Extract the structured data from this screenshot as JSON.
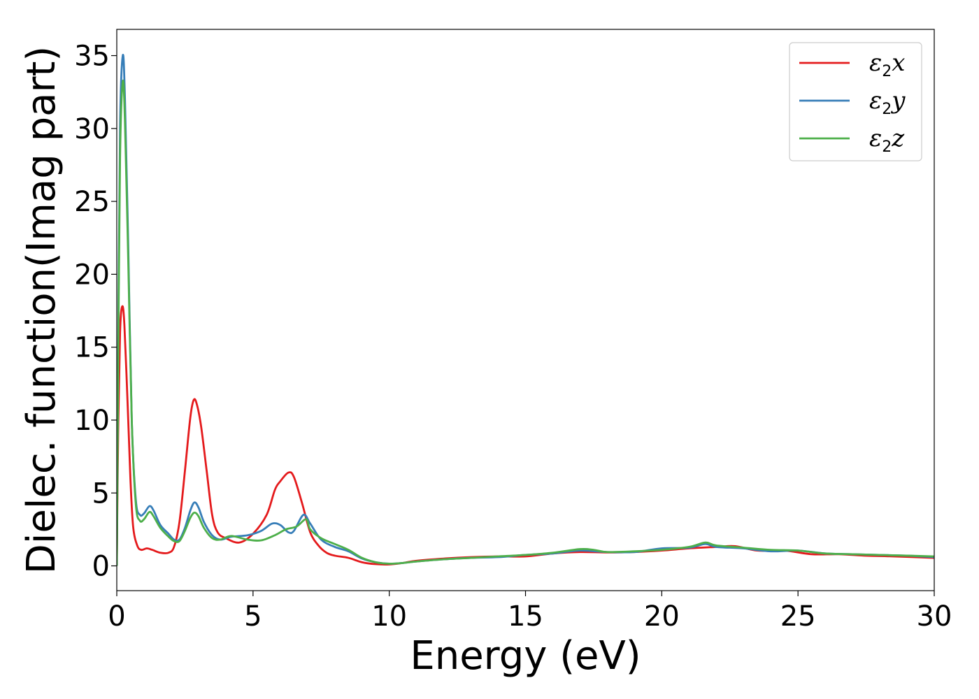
{
  "chart_data": {
    "type": "line",
    "xlabel": "Energy (eV)",
    "ylabel": "Dielec. function(Imag part)",
    "xlim": [
      0,
      30
    ],
    "ylim": [
      -1.7,
      36.8
    ],
    "xticks": [
      0,
      5,
      10,
      15,
      20,
      25,
      30
    ],
    "yticks": [
      0,
      5,
      10,
      15,
      20,
      25,
      30,
      35
    ],
    "grid": false,
    "legend_position": "top-right",
    "series": [
      {
        "name": "ε2x",
        "name_base": "ε",
        "name_sub": "2",
        "name_tail": "x",
        "color": "#e41a1c",
        "points": [
          [
            0,
            0
          ],
          [
            0.05,
            9
          ],
          [
            0.12,
            16
          ],
          [
            0.2,
            17.8
          ],
          [
            0.28,
            16.5
          ],
          [
            0.4,
            11
          ],
          [
            0.5,
            6
          ],
          [
            0.6,
            2.7
          ],
          [
            0.75,
            1.4
          ],
          [
            0.9,
            1.1
          ],
          [
            1.1,
            1.2
          ],
          [
            1.3,
            1.1
          ],
          [
            1.6,
            0.9
          ],
          [
            1.9,
            0.9
          ],
          [
            2.1,
            1.3
          ],
          [
            2.3,
            3
          ],
          [
            2.5,
            6.5
          ],
          [
            2.7,
            10.2
          ],
          [
            2.83,
            11.4
          ],
          [
            2.95,
            11
          ],
          [
            3.1,
            9.5
          ],
          [
            3.3,
            6.5
          ],
          [
            3.5,
            3.5
          ],
          [
            3.7,
            2.3
          ],
          [
            4,
            1.9
          ],
          [
            4.5,
            1.6
          ],
          [
            5,
            2.2
          ],
          [
            5.5,
            3.5
          ],
          [
            5.8,
            5.2
          ],
          [
            6,
            5.8
          ],
          [
            6.3,
            6.4
          ],
          [
            6.5,
            6.1
          ],
          [
            6.8,
            4.3
          ],
          [
            7.1,
            2.3
          ],
          [
            7.4,
            1.4
          ],
          [
            7.7,
            0.9
          ],
          [
            8,
            0.7
          ],
          [
            8.5,
            0.55
          ],
          [
            9,
            0.25
          ],
          [
            9.5,
            0.12
          ],
          [
            10,
            0.1
          ],
          [
            10.5,
            0.2
          ],
          [
            11,
            0.35
          ],
          [
            12,
            0.5
          ],
          [
            13,
            0.6
          ],
          [
            14,
            0.65
          ],
          [
            15,
            0.65
          ],
          [
            16,
            0.85
          ],
          [
            17,
            0.95
          ],
          [
            18,
            0.92
          ],
          [
            19,
            0.95
          ],
          [
            20,
            1.05
          ],
          [
            21,
            1.2
          ],
          [
            22,
            1.3
          ],
          [
            22.7,
            1.35
          ],
          [
            23.5,
            1.05
          ],
          [
            24.5,
            1.05
          ],
          [
            25.5,
            0.8
          ],
          [
            26.5,
            0.8
          ],
          [
            27.5,
            0.7
          ],
          [
            28.5,
            0.65
          ],
          [
            30,
            0.55
          ]
        ]
      },
      {
        "name": "ε2y",
        "name_base": "ε",
        "name_sub": "2",
        "name_tail": "y",
        "color": "#377eb8",
        "points": [
          [
            0,
            0
          ],
          [
            0.05,
            14
          ],
          [
            0.12,
            30
          ],
          [
            0.22,
            35
          ],
          [
            0.3,
            32
          ],
          [
            0.42,
            22
          ],
          [
            0.55,
            10
          ],
          [
            0.7,
            4.5
          ],
          [
            0.85,
            3.5
          ],
          [
            1,
            3.6
          ],
          [
            1.2,
            4.1
          ],
          [
            1.35,
            3.8
          ],
          [
            1.6,
            2.8
          ],
          [
            1.9,
            2.2
          ],
          [
            2.1,
            1.8
          ],
          [
            2.3,
            1.8
          ],
          [
            2.5,
            2.6
          ],
          [
            2.7,
            3.8
          ],
          [
            2.85,
            4.35
          ],
          [
            3,
            4
          ],
          [
            3.2,
            3
          ],
          [
            3.5,
            2.1
          ],
          [
            3.8,
            1.8
          ],
          [
            4.2,
            2
          ],
          [
            4.8,
            2.1
          ],
          [
            5.3,
            2.4
          ],
          [
            5.7,
            2.9
          ],
          [
            6,
            2.8
          ],
          [
            6.3,
            2.3
          ],
          [
            6.5,
            2.4
          ],
          [
            6.85,
            3.5
          ],
          [
            7.1,
            2.9
          ],
          [
            7.5,
            1.8
          ],
          [
            8,
            1.3
          ],
          [
            8.5,
            1
          ],
          [
            9,
            0.5
          ],
          [
            9.5,
            0.25
          ],
          [
            10,
            0.15
          ],
          [
            10.5,
            0.2
          ],
          [
            11,
            0.3
          ],
          [
            12,
            0.45
          ],
          [
            13,
            0.55
          ],
          [
            14,
            0.6
          ],
          [
            15,
            0.75
          ],
          [
            16,
            0.85
          ],
          [
            17,
            1.05
          ],
          [
            18,
            0.95
          ],
          [
            19,
            0.95
          ],
          [
            20,
            1.2
          ],
          [
            21,
            1.25
          ],
          [
            21.6,
            1.5
          ],
          [
            22,
            1.3
          ],
          [
            23,
            1.2
          ],
          [
            24,
            1
          ],
          [
            25,
            1.05
          ],
          [
            26,
            0.85
          ],
          [
            27,
            0.8
          ],
          [
            28,
            0.75
          ],
          [
            29,
            0.7
          ],
          [
            30,
            0.6
          ]
        ]
      },
      {
        "name": "ε2z",
        "name_base": "ε",
        "name_sub": "2",
        "name_tail": "z",
        "color": "#4daf4a",
        "points": [
          [
            0,
            0
          ],
          [
            0.05,
            13
          ],
          [
            0.12,
            28
          ],
          [
            0.22,
            33.2
          ],
          [
            0.3,
            30.5
          ],
          [
            0.42,
            21
          ],
          [
            0.55,
            10
          ],
          [
            0.7,
            4.2
          ],
          [
            0.85,
            3.1
          ],
          [
            1,
            3.2
          ],
          [
            1.2,
            3.7
          ],
          [
            1.35,
            3.4
          ],
          [
            1.6,
            2.6
          ],
          [
            1.9,
            2
          ],
          [
            2.1,
            1.7
          ],
          [
            2.3,
            1.7
          ],
          [
            2.5,
            2.4
          ],
          [
            2.7,
            3.3
          ],
          [
            2.85,
            3.65
          ],
          [
            3,
            3.4
          ],
          [
            3.2,
            2.6
          ],
          [
            3.5,
            1.9
          ],
          [
            3.8,
            1.8
          ],
          [
            4.2,
            2.05
          ],
          [
            4.8,
            1.8
          ],
          [
            5.3,
            1.75
          ],
          [
            5.8,
            2.1
          ],
          [
            6.2,
            2.5
          ],
          [
            6.6,
            2.7
          ],
          [
            6.95,
            3.2
          ],
          [
            7.1,
            2.5
          ],
          [
            7.5,
            1.9
          ],
          [
            8,
            1.5
          ],
          [
            8.5,
            1.1
          ],
          [
            9,
            0.55
          ],
          [
            9.5,
            0.25
          ],
          [
            10,
            0.15
          ],
          [
            10.5,
            0.2
          ],
          [
            11,
            0.3
          ],
          [
            12,
            0.45
          ],
          [
            13,
            0.55
          ],
          [
            14,
            0.65
          ],
          [
            15,
            0.75
          ],
          [
            16,
            0.9
          ],
          [
            17,
            1.15
          ],
          [
            17.5,
            1.1
          ],
          [
            18,
            0.95
          ],
          [
            19,
            1
          ],
          [
            20,
            1.1
          ],
          [
            21,
            1.3
          ],
          [
            21.6,
            1.6
          ],
          [
            22,
            1.4
          ],
          [
            23,
            1.25
          ],
          [
            24,
            1.1
          ],
          [
            25,
            1.05
          ],
          [
            26,
            0.85
          ],
          [
            27,
            0.8
          ],
          [
            28,
            0.75
          ],
          [
            29,
            0.7
          ],
          [
            30,
            0.65
          ]
        ]
      }
    ]
  }
}
